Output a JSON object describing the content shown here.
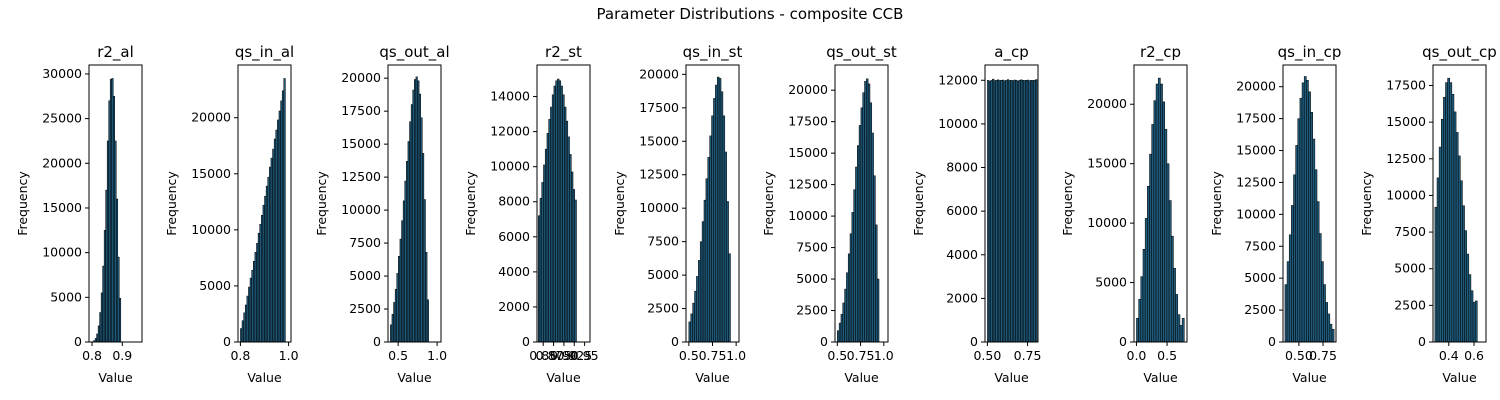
{
  "figure": {
    "title": "Parameter Distributions - composite CCB"
  },
  "colors": {
    "bar_fill": "#1f5a7a",
    "bar_edge": "#000000",
    "axis": "#000000"
  },
  "chart_data": [
    {
      "type": "bar",
      "title": "r2_al",
      "xlabel": "Value",
      "ylabel": "Frequency",
      "xlim": [
        0.79,
        0.965
      ],
      "ylim": [
        0,
        31000
      ],
      "xticks": [
        {
          "v": 0.8,
          "label": "0.8"
        },
        {
          "v": 0.9,
          "label": "0.9"
        }
      ],
      "yticks": [
        0,
        5000,
        10000,
        15000,
        20000,
        25000,
        30000
      ],
      "bins": {
        "start": 0.8,
        "width": 0.005
      },
      "values": [
        40,
        150,
        400,
        900,
        1800,
        3300,
        5500,
        8500,
        12500,
        17000,
        22500,
        27000,
        29400,
        29500,
        27500,
        22500,
        16000,
        9500,
        4900
      ]
    },
    {
      "type": "bar",
      "title": "qs_in_al",
      "xlabel": "Value",
      "ylabel": "Frequency",
      "xlim": [
        0.79,
        1.01
      ],
      "ylim": [
        0,
        24700
      ],
      "xticks": [
        {
          "v": 0.8,
          "label": "0.8"
        },
        {
          "v": 1.0,
          "label": "1.0"
        }
      ],
      "yticks": [
        0,
        5000,
        10000,
        15000,
        20000
      ],
      "bins": {
        "start": 0.8,
        "width": 0.00667
      },
      "values": [
        1200,
        1900,
        2600,
        3300,
        4100,
        4900,
        5700,
        6400,
        7200,
        8000,
        8800,
        9700,
        10500,
        11300,
        12200,
        13000,
        13900,
        14700,
        15600,
        16400,
        17200,
        18100,
        18900,
        19800,
        20600,
        21500,
        22400,
        23500
      ]
    },
    {
      "type": "bar",
      "title": "qs_out_al",
      "xlabel": "Value",
      "ylabel": "Frequency",
      "xlim": [
        0.37,
        1.05
      ],
      "ylim": [
        0,
        21000
      ],
      "xticks": [
        {
          "v": 0.5,
          "label": "0.5"
        },
        {
          "v": 1.0,
          "label": "1.0"
        }
      ],
      "yticks": [
        0,
        2500,
        5000,
        7500,
        10000,
        12500,
        15000,
        17500,
        20000
      ],
      "bins": {
        "start": 0.4,
        "width": 0.0205
      },
      "values": [
        1300,
        2100,
        3000,
        4000,
        5200,
        6500,
        7800,
        9200,
        10700,
        12200,
        13700,
        15200,
        16700,
        18000,
        19100,
        19900,
        20100,
        19800,
        18800,
        17000,
        14300,
        10800,
        6800,
        3200
      ]
    },
    {
      "type": "bar",
      "title": "r2_st",
      "xlabel": "Value",
      "ylabel": "Frequency",
      "xlim": [
        0.835,
        0.963
      ],
      "ylim": [
        0,
        15800
      ],
      "xticks": [
        {
          "v": 0.85,
          "label": "0.85"
        },
        {
          "v": 0.875,
          "label": "0.875"
        },
        {
          "v": 0.9,
          "label": "0.90"
        },
        {
          "v": 0.925,
          "label": "0.925"
        },
        {
          "v": 0.95,
          "label": "0.95"
        }
      ],
      "yticks": [
        0,
        2000,
        4000,
        6000,
        8000,
        10000,
        12000,
        14000
      ],
      "bins": {
        "start": 0.838,
        "width": 0.0042
      },
      "values": [
        7200,
        8200,
        9100,
        10100,
        11000,
        11900,
        12700,
        13400,
        14100,
        14600,
        14900,
        15000,
        14900,
        14600,
        14100,
        13400,
        12600,
        11700,
        10700,
        9700,
        8700,
        8100
      ]
    },
    {
      "type": "bar",
      "title": "qs_in_st",
      "xlabel": "Value",
      "ylabel": "Frequency",
      "xlim": [
        0.47,
        1.03
      ],
      "ylim": [
        0,
        20700
      ],
      "xticks": [
        {
          "v": 0.5,
          "label": "0.5"
        },
        {
          "v": 0.75,
          "label": "0.75"
        },
        {
          "v": 1.0,
          "label": "1.0"
        }
      ],
      "yticks": [
        0,
        2500,
        5000,
        7500,
        10000,
        12500,
        15000,
        17500,
        20000
      ],
      "bins": {
        "start": 0.5,
        "width": 0.02
      },
      "values": [
        1500,
        2100,
        2900,
        3800,
        4900,
        6100,
        7500,
        9000,
        10600,
        12200,
        13800,
        15400,
        16900,
        18200,
        19200,
        19800,
        19700,
        18700,
        16900,
        14200,
        10500,
        6600
      ]
    },
    {
      "type": "bar",
      "title": "qs_out_st",
      "xlabel": "Value",
      "ylabel": "Frequency",
      "xlim": [
        0.475,
        1.045
      ],
      "ylim": [
        0,
        22000
      ],
      "xticks": [
        {
          "v": 0.5,
          "label": "0.5"
        },
        {
          "v": 0.75,
          "label": "0.75"
        },
        {
          "v": 1.0,
          "label": "1.0"
        }
      ],
      "yticks": [
        0,
        2500,
        5000,
        7500,
        10000,
        12500,
        15000,
        17500,
        20000
      ],
      "bins": {
        "start": 0.5,
        "width": 0.0195
      },
      "values": [
        900,
        1500,
        2200,
        3100,
        4200,
        5500,
        7000,
        8600,
        10300,
        12100,
        13900,
        15600,
        17200,
        18600,
        19800,
        20700,
        20900,
        20500,
        19000,
        16600,
        13200,
        9300,
        5000
      ]
    },
    {
      "type": "bar",
      "title": "a_cp",
      "xlabel": "Value",
      "ylabel": "Frequency",
      "xlim": [
        0.485,
        0.815
      ],
      "ylim": [
        0,
        12700
      ],
      "xticks": [
        {
          "v": 0.5,
          "label": "0.50"
        },
        {
          "v": 0.75,
          "label": "0.75"
        }
      ],
      "yticks": [
        0,
        2000,
        4000,
        6000,
        8000,
        10000,
        12000
      ],
      "bins": {
        "start": 0.5,
        "width": 0.0103
      },
      "values": [
        12000,
        11950,
        12000,
        12050,
        11980,
        12000,
        12020,
        11990,
        12000,
        12010,
        11970,
        12000,
        12030,
        11990,
        12000,
        11980,
        12010,
        12000,
        11960,
        12000,
        12020,
        12000,
        11990,
        12000,
        12010,
        11980,
        12000,
        11990,
        12000,
        12030
      ]
    },
    {
      "type": "bar",
      "title": "r2_cp",
      "xlabel": "Value",
      "ylabel": "Frequency",
      "xlim": [
        -0.04,
        0.825
      ],
      "ylim": [
        0,
        23300
      ],
      "xticks": [
        {
          "v": 0.0,
          "label": "0.0"
        },
        {
          "v": 0.5,
          "label": "0.5"
        }
      ],
      "yticks": [
        0,
        5000,
        10000,
        15000,
        20000
      ],
      "bins": {
        "start": 0.0,
        "width": 0.0355
      },
      "values": [
        2000,
        3600,
        5500,
        7800,
        10400,
        13100,
        15800,
        18300,
        20300,
        21700,
        22200,
        21700,
        20200,
        17900,
        15000,
        11900,
        8900,
        6200,
        4000,
        2300,
        1400,
        2000
      ]
    },
    {
      "type": "bar",
      "title": "qs_in_cp",
      "xlabel": "Value",
      "ylabel": "Frequency",
      "xlim": [
        0.335,
        0.885
      ],
      "ylim": [
        0,
        21700
      ],
      "xticks": [
        {
          "v": 0.5,
          "label": "0.50"
        },
        {
          "v": 0.75,
          "label": "0.75"
        }
      ],
      "yticks": [
        0,
        2500,
        5000,
        7500,
        10000,
        12500,
        15000,
        17500,
        20000
      ],
      "bins": {
        "start": 0.355,
        "width": 0.0222
      },
      "values": [
        4500,
        6300,
        8400,
        10700,
        13100,
        15400,
        17500,
        19100,
        20300,
        20800,
        20500,
        19600,
        18000,
        15900,
        13500,
        11000,
        8500,
        6300,
        4500,
        3100,
        2200,
        1400,
        1000
      ]
    },
    {
      "type": "bar",
      "title": "qs_out_cp",
      "xlabel": "Value",
      "ylabel": "Frequency",
      "xlim": [
        0.275,
        0.695
      ],
      "ylim": [
        0,
        18900
      ],
      "xticks": [
        {
          "v": 0.4,
          "label": "0.4"
        },
        {
          "v": 0.6,
          "label": "0.6"
        }
      ],
      "yticks": [
        0,
        2500,
        5000,
        7500,
        10000,
        12500,
        15000,
        17500
      ],
      "bins": {
        "start": 0.29,
        "width": 0.0168
      },
      "values": [
        9200,
        11200,
        13300,
        15200,
        16700,
        17700,
        18000,
        17700,
        16900,
        15700,
        14300,
        12700,
        11000,
        9300,
        7600,
        6000,
        4600,
        3500,
        2700,
        2800
      ]
    }
  ]
}
